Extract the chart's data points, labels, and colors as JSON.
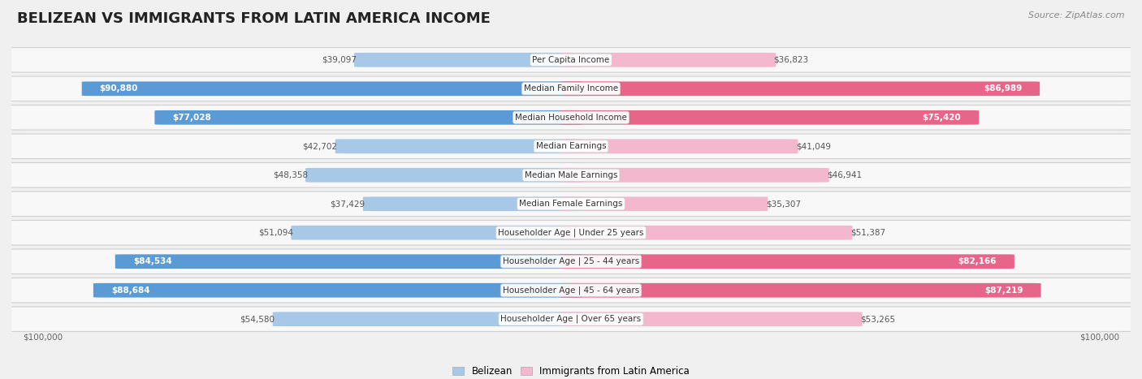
{
  "title": "BELIZEAN VS IMMIGRANTS FROM LATIN AMERICA INCOME",
  "source": "Source: ZipAtlas.com",
  "categories": [
    "Per Capita Income",
    "Median Family Income",
    "Median Household Income",
    "Median Earnings",
    "Median Male Earnings",
    "Median Female Earnings",
    "Householder Age | Under 25 years",
    "Householder Age | 25 - 44 years",
    "Householder Age | 45 - 64 years",
    "Householder Age | Over 65 years"
  ],
  "belizean_values": [
    39097,
    90880,
    77028,
    42702,
    48358,
    37429,
    51094,
    84534,
    88684,
    54580
  ],
  "immigrant_values": [
    36823,
    86989,
    75420,
    41049,
    46941,
    35307,
    51387,
    82166,
    87219,
    53265
  ],
  "belizean_labels": [
    "$39,097",
    "$90,880",
    "$77,028",
    "$42,702",
    "$48,358",
    "$37,429",
    "$51,094",
    "$84,534",
    "$88,684",
    "$54,580"
  ],
  "immigrant_labels": [
    "$36,823",
    "$86,989",
    "$75,420",
    "$41,049",
    "$46,941",
    "$35,307",
    "$51,387",
    "$82,166",
    "$87,219",
    "$53,265"
  ],
  "max_value": 100000,
  "belizean_color_light": "#a8c8e8",
  "belizean_color_dark": "#5b9bd5",
  "immigrant_color_light": "#f4b8ce",
  "immigrant_color_dark": "#e8658a",
  "bg_color": "#f0f0f0",
  "row_bg": "#f8f8f8",
  "label_threshold": 55000,
  "axis_label": "$100,000",
  "legend_belizean": "Belizean",
  "legend_immigrant": "Immigrants from Latin America",
  "title_fontsize": 13,
  "source_fontsize": 8,
  "cat_fontsize": 7.5,
  "val_fontsize": 7.5
}
